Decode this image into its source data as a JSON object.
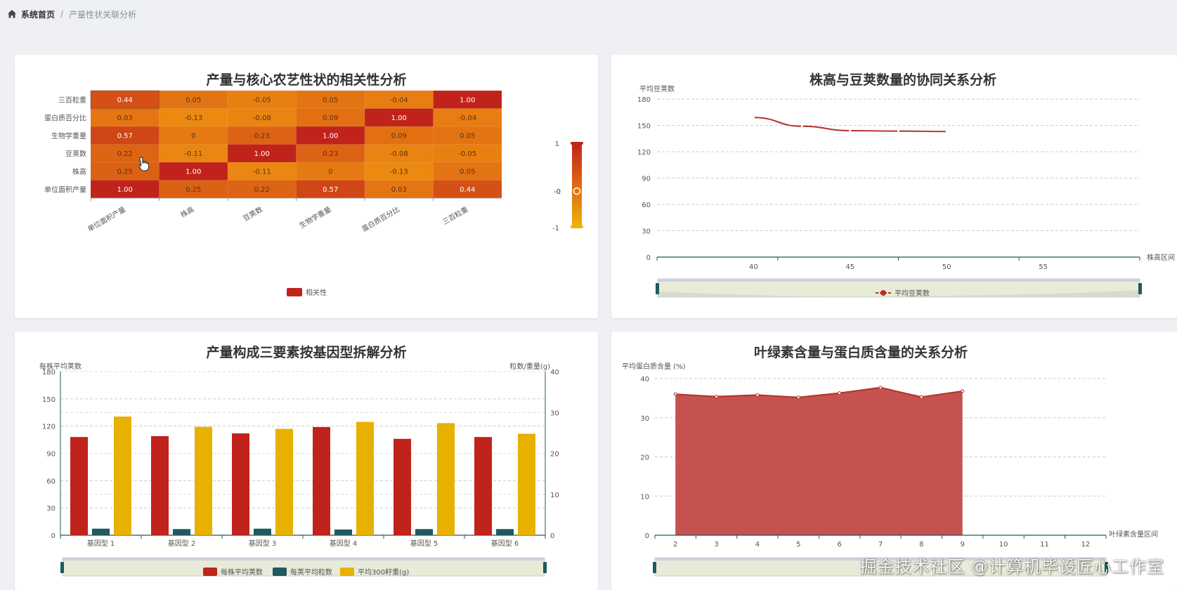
{
  "breadcrumb": {
    "home": "系统首页",
    "separator": "/",
    "current": "产量性状关联分析"
  },
  "watermark": "掘金技术社区 @计算机毕设匠心工作室",
  "chart_data": [
    {
      "type": "heatmap",
      "title": "产量与核心农艺性状的相关性分析",
      "x_categories": [
        "单位面积产量",
        "株高",
        "豆荚数",
        "生物学重量",
        "蛋白质百分比",
        "三百粒重"
      ],
      "y_categories": [
        "单位面积产量",
        "株高",
        "豆荚数",
        "生物学重量",
        "蛋白质百分比",
        "三百粒重"
      ],
      "cells": [
        {
          "x": 0,
          "y": 0,
          "value": 1.0,
          "label": "1.00"
        },
        {
          "x": 1,
          "y": 0,
          "value": 0.25,
          "label": "0.25"
        },
        {
          "x": 2,
          "y": 0,
          "value": 0.22,
          "label": "0.22"
        },
        {
          "x": 3,
          "y": 0,
          "value": 0.57,
          "label": "0.57"
        },
        {
          "x": 4,
          "y": 0,
          "value": 0.03,
          "label": "0.03"
        },
        {
          "x": 5,
          "y": 0,
          "value": 0.44,
          "label": "0.44"
        },
        {
          "x": 0,
          "y": 1,
          "value": 0.25,
          "label": "0.25"
        },
        {
          "x": 1,
          "y": 1,
          "value": 1.0,
          "label": "1.00"
        },
        {
          "x": 2,
          "y": 1,
          "value": -0.11,
          "label": "-0.11"
        },
        {
          "x": 3,
          "y": 1,
          "value": 0,
          "label": "0"
        },
        {
          "x": 4,
          "y": 1,
          "value": -0.13,
          "label": "-0.13"
        },
        {
          "x": 5,
          "y": 1,
          "value": 0.05,
          "label": "0.05"
        },
        {
          "x": 0,
          "y": 2,
          "value": 0.22,
          "label": "0.22"
        },
        {
          "x": 1,
          "y": 2,
          "value": -0.11,
          "label": "-0.11"
        },
        {
          "x": 2,
          "y": 2,
          "value": 1.0,
          "label": "1.00"
        },
        {
          "x": 3,
          "y": 2,
          "value": 0.23,
          "label": "0.23"
        },
        {
          "x": 4,
          "y": 2,
          "value": -0.08,
          "label": "-0.08"
        },
        {
          "x": 5,
          "y": 2,
          "value": -0.05,
          "label": "-0.05"
        },
        {
          "x": 0,
          "y": 3,
          "value": 0.57,
          "label": "0.57"
        },
        {
          "x": 1,
          "y": 3,
          "value": 0,
          "label": "0"
        },
        {
          "x": 2,
          "y": 3,
          "value": 0.23,
          "label": "0.23"
        },
        {
          "x": 3,
          "y": 3,
          "value": 1.0,
          "label": "1.00"
        },
        {
          "x": 4,
          "y": 3,
          "value": 0.09,
          "label": "0.09"
        },
        {
          "x": 5,
          "y": 3,
          "value": 0.05,
          "label": "0.05"
        },
        {
          "x": 0,
          "y": 4,
          "value": 0.03,
          "label": "0.03"
        },
        {
          "x": 1,
          "y": 4,
          "value": -0.13,
          "label": "-0.13"
        },
        {
          "x": 2,
          "y": 4,
          "value": -0.08,
          "label": "-0.08"
        },
        {
          "x": 3,
          "y": 4,
          "value": 0.09,
          "label": "0.09"
        },
        {
          "x": 4,
          "y": 4,
          "value": 1.0,
          "label": "1.00"
        },
        {
          "x": 5,
          "y": 4,
          "value": -0.04,
          "label": "-0.04"
        },
        {
          "x": 0,
          "y": 5,
          "value": 0.44,
          "label": "0.44"
        },
        {
          "x": 1,
          "y": 5,
          "value": 0.05,
          "label": "0.05"
        },
        {
          "x": 2,
          "y": 5,
          "value": -0.05,
          "label": "-0.05"
        },
        {
          "x": 3,
          "y": 5,
          "value": 0.05,
          "label": "0.05"
        },
        {
          "x": 4,
          "y": 5,
          "value": -0.04,
          "label": "-0.04"
        },
        {
          "x": 5,
          "y": 5,
          "value": 1.0,
          "label": "1.00"
        }
      ],
      "visual_map": {
        "min": -1,
        "max": 1,
        "min_label": "-1",
        "max_label": "1",
        "current_label": "-0"
      },
      "legend": [
        "相关性"
      ],
      "colors": {
        "low": "#eab308",
        "mid": "#f08a17",
        "high": "#c0231b"
      }
    },
    {
      "type": "line",
      "title": "株高与豆荚数量的协同关系分析",
      "ylabel": "平均豆荚数",
      "xlabel": "株高区间",
      "x_ticks": [
        40,
        45,
        50,
        55
      ],
      "x_range": [
        35,
        60
      ],
      "y_ticks": [
        0,
        30,
        60,
        90,
        120,
        150,
        180
      ],
      "ylim": [
        0,
        180
      ],
      "series": [
        {
          "name": "平均豆荚数",
          "x": [
            40,
            42.5,
            45,
            47.5,
            50
          ],
          "values": [
            159,
            149,
            144,
            143.5,
            143
          ]
        }
      ],
      "legend": [
        "平均豆荚数"
      ],
      "colors": {
        "line": "#b3322a"
      }
    },
    {
      "type": "bar",
      "title": "产量构成三要素按基因型拆解分析",
      "ylabel_left": "每株平均荚数",
      "ylabel_right": "粒数/重量(g)",
      "categories": [
        "基因型 1",
        "基因型 2",
        "基因型 3",
        "基因型 4",
        "基因型 5",
        "基因型 6"
      ],
      "y_left_ticks": [
        0,
        30,
        60,
        90,
        120,
        150,
        180
      ],
      "ylim_left": [
        0,
        180
      ],
      "y_right_ticks": [
        0,
        10,
        20,
        30,
        40
      ],
      "ylim_right": [
        0,
        40
      ],
      "series": [
        {
          "name": "每株平均荚数",
          "axis": "left",
          "values": [
            108,
            109,
            112,
            119,
            106,
            108
          ],
          "color": "#c0231b"
        },
        {
          "name": "每荚平均粒数",
          "axis": "right",
          "values": [
            1.6,
            1.5,
            1.6,
            1.4,
            1.5,
            1.5
          ],
          "color": "#1f5a5f"
        },
        {
          "name": "平均300籽重(g)",
          "axis": "right",
          "values": [
            29,
            26.5,
            26,
            27.7,
            27.4,
            24.8
          ],
          "color": "#e8b000"
        }
      ],
      "legend": [
        "每株平均荚数",
        "每荚平均粒数",
        "平均300籽重(g)"
      ]
    },
    {
      "type": "area",
      "title": "叶绿素含量与蛋白质含量的关系分析",
      "ylabel": "平均蛋白质含量 (%)",
      "xlabel": "叶绿素含量区间",
      "categories": [
        "2",
        "3",
        "4",
        "5",
        "6",
        "7",
        "8",
        "9",
        "10",
        "11",
        "12"
      ],
      "y_ticks": [
        0,
        10,
        20,
        30,
        40
      ],
      "ylim": [
        0,
        40
      ],
      "series": [
        {
          "name": "平均蛋白质含量",
          "values": [
            36,
            35.4,
            35.8,
            35.2,
            36.3,
            37.7,
            35.3,
            36.8,
            null,
            null,
            null
          ]
        }
      ],
      "colors": {
        "fill": "#c0433f",
        "line": "#b3322a"
      }
    }
  ]
}
